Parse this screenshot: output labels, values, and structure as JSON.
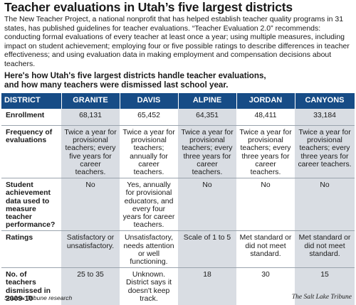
{
  "title": "Teacher evaluations in Utah’s five largest districts",
  "intro": "The New Teacher Project, a national nonprofit that has helped establish teacher quality programs in 31 states, has published guidelines for teacher evaluations. “Teacher Evaluation 2.0” recommends: conducting formal evaluations of every teacher at least once a year; using multiple measures, including impact on student achievement; employing four or five possible ratings to describe differences in teacher effectiveness; and using evaluation data in making employment and compensation decisions about teachers.",
  "subhead_line1": "Here's how Utah's five largest districts handle teacher evaluations,",
  "subhead_line2": "and how many teachers were dismissed last school year.",
  "table": {
    "headers": [
      "DISTRICT",
      "GRANITE",
      "DAVIS",
      "ALPINE",
      "JORDAN",
      "CANYONS"
    ],
    "rows": {
      "enrollment": {
        "label": "Enrollment",
        "values": [
          "68,131",
          "65,452",
          "64,351",
          "48,411",
          "33,184"
        ]
      },
      "frequency": {
        "label": "Frequency of evaluations",
        "values": [
          "Twice a year for provisional teachers; every five years for career teachers.",
          "Twice a year for provisional teachers; annually for career teachers.",
          "Twice a year for provisional teachers; every three years for career teachers.",
          "Twice a year for provisional teachers; every three years for career teachers.",
          "Twice a year for provisional teachers; every three years for career teachers."
        ]
      },
      "student_data": {
        "label": "Student achievement data used to measure teacher performance?",
        "values": [
          "No",
          "Yes, annually for provisional educators, and every four years for career teachers.",
          "No",
          "No",
          "No"
        ]
      },
      "ratings": {
        "label": "Ratings",
        "values": [
          "Satisfactory or unsatisfactory.",
          "Unsatisfactory, needs attention or well functioning.",
          "Scale of 1 to 5",
          "Met standard or did not meet standard.",
          "Met standard or did not meet standard."
        ]
      },
      "dismissed": {
        "label": "No. of teachers dismissed in 2009-10",
        "values": [
          "25 to 35",
          "Unknown. District says it doesn't keep track.",
          "18",
          "30",
          "15"
        ]
      }
    }
  },
  "source": "Source: Tribune research",
  "credit": "The Salt Lake Tribune",
  "colors": {
    "header_bg": "#174c86",
    "shade": "#d9dde3"
  }
}
